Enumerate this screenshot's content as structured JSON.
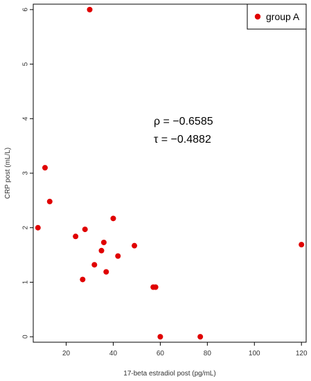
{
  "chart_data": {
    "type": "scatter",
    "title": "",
    "xlabel": "17-beta estradiol post (pg/mL)",
    "ylabel": "CRP post (mL/L)",
    "xlim": [
      6,
      122
    ],
    "ylim": [
      -0.1,
      6.1
    ],
    "xticks": [
      "20",
      "40",
      "60",
      "80",
      "100",
      "120"
    ],
    "yticks": [
      "0",
      "1",
      "2",
      "3",
      "4",
      "5",
      "6"
    ],
    "legend_position": "top-right",
    "grid": false,
    "color": "#e00000",
    "series": [
      {
        "name": "group A",
        "points": [
          {
            "x": 8,
            "y": 2.0
          },
          {
            "x": 11,
            "y": 3.1
          },
          {
            "x": 13,
            "y": 2.48
          },
          {
            "x": 24,
            "y": 1.84
          },
          {
            "x": 27,
            "y": 1.05
          },
          {
            "x": 28,
            "y": 1.97
          },
          {
            "x": 30,
            "y": 6.0
          },
          {
            "x": 32,
            "y": 1.32
          },
          {
            "x": 35,
            "y": 1.58
          },
          {
            "x": 36,
            "y": 1.73
          },
          {
            "x": 37,
            "y": 1.19
          },
          {
            "x": 40,
            "y": 2.17
          },
          {
            "x": 42,
            "y": 1.48
          },
          {
            "x": 49,
            "y": 1.67
          },
          {
            "x": 57,
            "y": 0.91
          },
          {
            "x": 58,
            "y": 0.91
          },
          {
            "x": 60,
            "y": 0.0
          },
          {
            "x": 77,
            "y": 0.0
          },
          {
            "x": 120,
            "y": 1.69
          }
        ]
      }
    ],
    "annotations": [
      "ρ = −0.6585",
      "τ = −0.4882"
    ]
  }
}
